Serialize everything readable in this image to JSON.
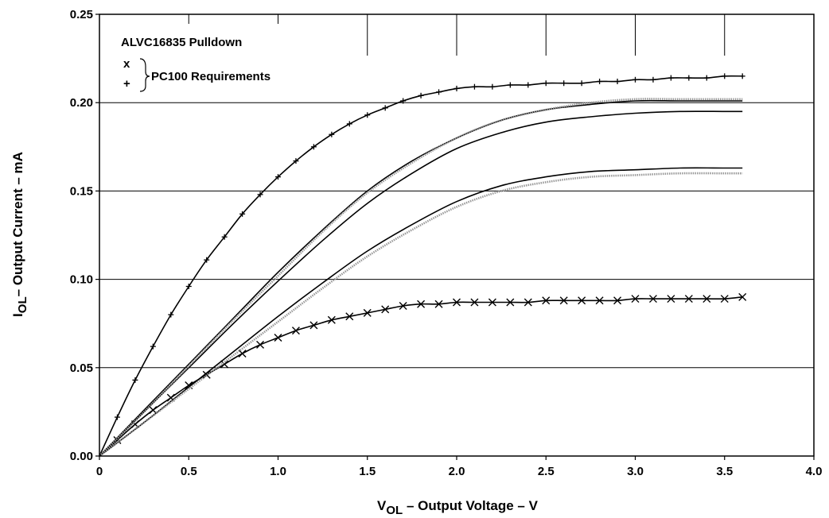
{
  "chart_data": {
    "type": "line",
    "title": "",
    "xlabel": {
      "main": "V",
      "sub": "OL",
      "rest": " – Output Voltage – V"
    },
    "ylabel": {
      "main": "I",
      "sub": "OL",
      "rest": "– Output Current – mA"
    },
    "xlim": [
      0,
      4.0
    ],
    "ylim": [
      0,
      0.25
    ],
    "x_ticks": [
      "0",
      "0.5",
      "1.0",
      "1.5",
      "2.0",
      "2.5",
      "3.0",
      "3.5",
      "4.0"
    ],
    "y_ticks": [
      "0.00",
      "0.05",
      "0.10",
      "0.15",
      "0.20",
      "0.25"
    ],
    "grid": "horizontal",
    "legend": {
      "title": "ALVC16835 Pulldown",
      "markers": [
        "x",
        "+"
      ],
      "group_label": "PC100 Requirements"
    },
    "series": [
      {
        "marker": "plus",
        "color": "#000000",
        "x": [
          0,
          0.1,
          0.2,
          0.3,
          0.4,
          0.5,
          0.6,
          0.7,
          0.8,
          0.9,
          1.0,
          1.1,
          1.2,
          1.3,
          1.4,
          1.5,
          1.6,
          1.7,
          1.8,
          1.9,
          2.0,
          2.1,
          2.2,
          2.3,
          2.4,
          2.5,
          2.6,
          2.7,
          2.8,
          2.9,
          3.0,
          3.1,
          3.2,
          3.3,
          3.4,
          3.5,
          3.6
        ],
        "y": [
          0,
          0.022,
          0.043,
          0.062,
          0.08,
          0.096,
          0.111,
          0.124,
          0.137,
          0.148,
          0.158,
          0.167,
          0.175,
          0.182,
          0.188,
          0.193,
          0.197,
          0.201,
          0.204,
          0.206,
          0.208,
          0.209,
          0.209,
          0.21,
          0.21,
          0.211,
          0.211,
          0.211,
          0.212,
          0.212,
          0.213,
          0.213,
          0.214,
          0.214,
          0.214,
          0.215,
          0.215
        ]
      },
      {
        "marker": "x",
        "color": "#000000",
        "x": [
          0,
          0.1,
          0.2,
          0.3,
          0.4,
          0.5,
          0.6,
          0.7,
          0.8,
          0.9,
          1.0,
          1.1,
          1.2,
          1.3,
          1.4,
          1.5,
          1.6,
          1.7,
          1.8,
          1.9,
          2.0,
          2.1,
          2.2,
          2.3,
          2.4,
          2.5,
          2.6,
          2.7,
          2.8,
          2.9,
          3.0,
          3.1,
          3.2,
          3.3,
          3.4,
          3.5,
          3.6
        ],
        "y": [
          0,
          0.009,
          0.018,
          0.026,
          0.033,
          0.04,
          0.046,
          0.052,
          0.058,
          0.063,
          0.067,
          0.071,
          0.074,
          0.077,
          0.079,
          0.081,
          0.083,
          0.085,
          0.086,
          0.086,
          0.087,
          0.087,
          0.087,
          0.087,
          0.087,
          0.088,
          0.088,
          0.088,
          0.088,
          0.088,
          0.089,
          0.089,
          0.089,
          0.089,
          0.089,
          0.089,
          0.09
        ]
      },
      {
        "marker": "none",
        "color": "#000000",
        "x": [
          0,
          0.25,
          0.5,
          0.75,
          1.0,
          1.25,
          1.5,
          1.75,
          2.0,
          2.25,
          2.5,
          2.75,
          3.0,
          3.25,
          3.5,
          3.6
        ],
        "y": [
          0,
          0.026,
          0.052,
          0.078,
          0.104,
          0.128,
          0.15,
          0.167,
          0.18,
          0.19,
          0.196,
          0.199,
          0.201,
          0.201,
          0.201,
          0.201
        ]
      },
      {
        "marker": "none",
        "color": "#000000",
        "x": [
          0,
          0.25,
          0.5,
          0.75,
          1.0,
          1.25,
          1.5,
          1.75,
          2.0,
          2.25,
          2.5,
          2.75,
          3.0,
          3.25,
          3.5,
          3.6
        ],
        "y": [
          0,
          0.025,
          0.05,
          0.075,
          0.099,
          0.122,
          0.143,
          0.16,
          0.174,
          0.183,
          0.189,
          0.192,
          0.194,
          0.195,
          0.195,
          0.195
        ]
      },
      {
        "marker": "none",
        "color": "#000000",
        "x": [
          0,
          0.25,
          0.5,
          0.75,
          1.0,
          1.25,
          1.5,
          1.75,
          2.0,
          2.25,
          2.5,
          2.75,
          3.0,
          3.25,
          3.5,
          3.6
        ],
        "y": [
          0,
          0.019,
          0.039,
          0.059,
          0.079,
          0.098,
          0.116,
          0.131,
          0.144,
          0.153,
          0.158,
          0.161,
          0.162,
          0.163,
          0.163,
          0.163
        ]
      },
      {
        "marker": "none",
        "color": "#999999",
        "x": [
          0,
          0.25,
          0.5,
          0.75,
          1.0,
          1.25,
          1.5,
          1.75,
          2.0,
          2.25,
          2.5,
          2.75,
          3.0,
          3.25,
          3.5,
          3.6
        ],
        "y": [
          0,
          0.025,
          0.051,
          0.077,
          0.102,
          0.127,
          0.149,
          0.166,
          0.18,
          0.19,
          0.196,
          0.2,
          0.202,
          0.202,
          0.202,
          0.202
        ]
      },
      {
        "marker": "none",
        "color": "#999999",
        "x": [
          0,
          0.25,
          0.5,
          0.75,
          1.0,
          1.25,
          1.5,
          1.75,
          2.0,
          2.25,
          2.5,
          2.75,
          3.0,
          3.25,
          3.5,
          3.6
        ],
        "y": [
          0,
          0.019,
          0.038,
          0.057,
          0.076,
          0.095,
          0.113,
          0.128,
          0.141,
          0.15,
          0.155,
          0.158,
          0.159,
          0.16,
          0.16,
          0.16
        ]
      }
    ]
  }
}
